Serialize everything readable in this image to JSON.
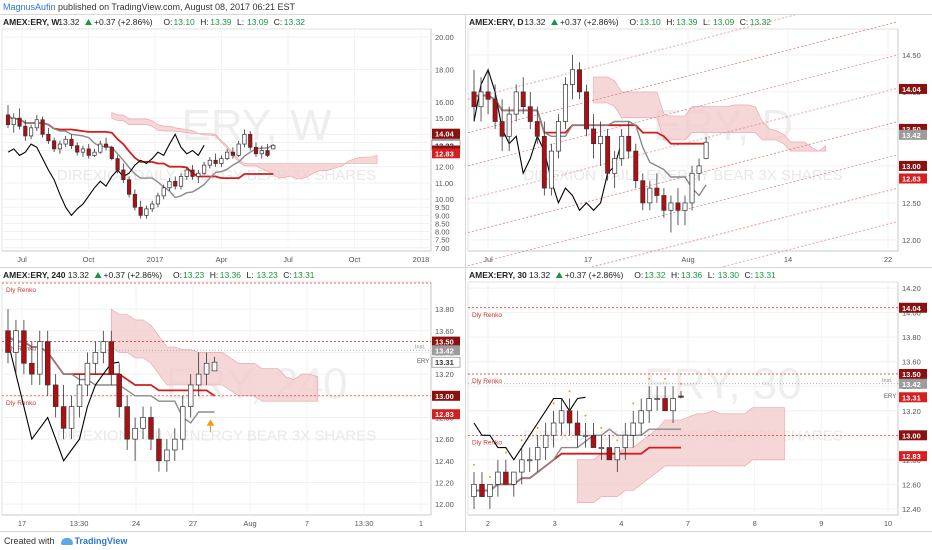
{
  "header": {
    "author": "MagnusAufin",
    "rest": " published on TradingView.com, August 08, 2017 06:21 EST"
  },
  "footer": {
    "prefix": "Created with",
    "brand": "TradingView",
    "icon": "cloud-icon"
  },
  "colors": {
    "up": "#ffffff",
    "down": "#b10d12",
    "cloud": "#f3c9cb",
    "red_line": "#d11e1e",
    "gray_line": "#8a8a8a",
    "black_line": "#000000",
    "orange": "#f29a1a",
    "green": "#1a9641"
  },
  "panels": [
    {
      "id": "weekly",
      "symbol": "AMEX:ERY, W",
      "last": "13.32",
      "change": "+0.37 (+2.86%)",
      "open": "13.10",
      "high": "13.39",
      "low": "13.09",
      "close": "13.32",
      "watermark_big": "ERY, W",
      "watermark_sub": "DIREXION DAILY ENERGY BEAR 3X SHARES",
      "x_labels": [
        "Jul",
        "Oct",
        "2017",
        "Apr",
        "Jul",
        "Oct",
        "2018"
      ],
      "y_labels": [
        "20.00",
        "18.00",
        "16.00",
        "15.00",
        "14.00",
        "13.50",
        "13.00",
        "12.00",
        "11.00",
        "10.00",
        "9.50",
        "9.00",
        "8.50",
        "8.00",
        "7.50",
        "7.00"
      ],
      "price_tags": [
        {
          "value": "14.04",
          "style": "down"
        },
        {
          "value": "13.50",
          "style": "down"
        },
        {
          "value": "13.42",
          "style": "gray"
        },
        {
          "value": "13.32",
          "style": "outline"
        },
        {
          "value": "13.00",
          "style": "down"
        },
        {
          "value": "12.83",
          "style": "red"
        }
      ],
      "annotations": []
    },
    {
      "id": "daily",
      "symbol": "AMEX:ERY, D",
      "last": "13.32",
      "change": "+0.37 (+2.86%)",
      "open": "13.10",
      "high": "13.39",
      "low": "13.09",
      "close": "13.32",
      "watermark_big": "ERY, D",
      "watermark_sub": "DIREXION DAILY ENERGY BEAR 3X SHARES",
      "x_labels": [
        "Jul",
        "17",
        "Aug",
        "14",
        "22"
      ],
      "y_labels": [
        "14.50",
        "14.00",
        "13.50",
        "13.00",
        "12.50",
        "12.00"
      ],
      "price_tags": [
        {
          "value": "14.04",
          "style": "down"
        },
        {
          "value": "13.50",
          "style": "down"
        },
        {
          "value": "13.42",
          "style": "gray"
        },
        {
          "value": "13.00",
          "style": "down"
        },
        {
          "value": "12.83",
          "style": "red"
        }
      ],
      "annotations": []
    },
    {
      "id": "h240",
      "symbol": "AMEX:ERY, 240",
      "last": "13.32",
      "change": "+0.37 (+2.86%)",
      "open": "13.23",
      "high": "13.36",
      "low": "13.23",
      "close": "13.31",
      "watermark_big": "ERY, 240",
      "watermark_sub": "DIREXION DAILY ENERGY BEAR 3X SHARES",
      "x_labels": [
        "17",
        "13:30",
        "24",
        "27",
        "Aug",
        "7",
        "13:30",
        "1"
      ],
      "y_labels": [
        "13.80",
        "13.60",
        "13.40",
        "13.20",
        "13.00",
        "12.80",
        "12.60",
        "12.40",
        "12.20",
        "12.00"
      ],
      "price_tags": [
        {
          "value": "13.50",
          "style": "down"
        },
        {
          "value": "13.42",
          "style": "gray"
        },
        {
          "value": "13.31",
          "style": "outline"
        },
        {
          "value": "13.00",
          "style": "down"
        },
        {
          "value": "12.83",
          "style": "red"
        }
      ],
      "annotations": [
        "Dly Renko",
        "Dly Renko",
        "Dly Renko",
        "ERY",
        "Inst."
      ]
    },
    {
      "id": "m30",
      "symbol": "AMEX:ERY, 30",
      "last": "13.32",
      "change": "+0.37 (+2.86%)",
      "open": "13.32",
      "high": "13.36",
      "low": "13.30",
      "close": "13.31",
      "watermark_big": "ERY, 30",
      "watermark_sub": "DIREXION DAILY ENERGY BEAR 3X SHARES",
      "x_labels": [
        "2",
        "3",
        "4",
        "7",
        "8",
        "9",
        "10"
      ],
      "y_labels": [
        "14.20",
        "14.00",
        "13.80",
        "13.60",
        "13.40",
        "13.20",
        "13.00",
        "12.80",
        "12.60",
        "12.40"
      ],
      "price_tags": [
        {
          "value": "14.04",
          "style": "down"
        },
        {
          "value": "13.50",
          "style": "down"
        },
        {
          "value": "13.42",
          "style": "gray"
        },
        {
          "value": "13.31",
          "style": "red"
        },
        {
          "value": "13.00",
          "style": "down"
        },
        {
          "value": "12.83",
          "style": "red"
        }
      ],
      "annotations": [
        "Dly Renko",
        "Dly Renko",
        "Dly Renko",
        "ERY",
        "Inst."
      ]
    }
  ],
  "chart_data": [
    {
      "type": "candlestick",
      "panel": "weekly",
      "title": "AMEX:ERY, W",
      "x": [
        "Jul",
        "Oct",
        "2017",
        "Apr",
        "Jul",
        "Oct",
        "2018"
      ],
      "ylim": [
        6.8,
        20.5
      ],
      "ohlc": [
        [
          15.2,
          15.8,
          14.4,
          14.6
        ],
        [
          14.6,
          15.3,
          14.1,
          15.0
        ],
        [
          15.0,
          15.6,
          14.3,
          14.5
        ],
        [
          14.5,
          14.9,
          13.6,
          13.9
        ],
        [
          13.9,
          14.6,
          13.7,
          14.4
        ],
        [
          14.4,
          15.2,
          14.2,
          14.9
        ],
        [
          14.9,
          15.1,
          13.8,
          14.0
        ],
        [
          14.0,
          14.4,
          13.4,
          13.6
        ],
        [
          13.6,
          13.8,
          12.9,
          13.1
        ],
        [
          13.1,
          13.6,
          12.8,
          13.4
        ],
        [
          13.4,
          13.9,
          13.2,
          13.7
        ],
        [
          13.7,
          14.0,
          13.1,
          13.3
        ],
        [
          13.3,
          13.5,
          12.7,
          12.9
        ],
        [
          12.9,
          13.3,
          12.6,
          13.1
        ],
        [
          13.1,
          13.4,
          12.5,
          12.7
        ],
        [
          12.7,
          13.1,
          12.6,
          12.9
        ],
        [
          12.9,
          13.6,
          12.8,
          13.4
        ],
        [
          13.4,
          13.8,
          13.0,
          13.2
        ],
        [
          13.2,
          13.3,
          12.4,
          12.5
        ],
        [
          12.5,
          12.7,
          11.6,
          11.8
        ],
        [
          11.8,
          12.2,
          11.0,
          11.2
        ],
        [
          11.2,
          11.4,
          10.1,
          10.3
        ],
        [
          10.3,
          10.6,
          9.3,
          9.5
        ],
        [
          9.5,
          9.9,
          8.8,
          9.0
        ],
        [
          9.0,
          9.6,
          8.8,
          9.4
        ],
        [
          9.4,
          9.9,
          9.2,
          9.7
        ],
        [
          9.7,
          10.4,
          9.5,
          10.2
        ],
        [
          10.2,
          10.9,
          10.0,
          10.7
        ],
        [
          10.7,
          11.3,
          10.5,
          11.1
        ],
        [
          11.1,
          11.4,
          10.6,
          10.8
        ],
        [
          10.8,
          11.6,
          10.6,
          11.4
        ],
        [
          11.4,
          12.0,
          11.2,
          11.8
        ],
        [
          11.8,
          12.1,
          11.2,
          11.4
        ],
        [
          11.4,
          11.8,
          11.0,
          11.6
        ],
        [
          11.6,
          12.3,
          11.5,
          12.1
        ],
        [
          12.1,
          12.6,
          11.9,
          12.4
        ],
        [
          12.4,
          12.8,
          12.0,
          12.2
        ],
        [
          12.2,
          12.7,
          12.0,
          12.5
        ],
        [
          12.5,
          13.1,
          12.4,
          12.9
        ],
        [
          12.9,
          13.2,
          12.5,
          12.7
        ],
        [
          12.7,
          13.6,
          12.6,
          13.4
        ],
        [
          13.4,
          14.3,
          13.2,
          14.0
        ],
        [
          14.0,
          14.2,
          13.0,
          13.2
        ],
        [
          13.2,
          13.5,
          12.6,
          12.8
        ],
        [
          12.8,
          13.3,
          12.5,
          13.0
        ],
        [
          13.0,
          13.4,
          12.6,
          12.7
        ],
        [
          13.1,
          13.39,
          13.09,
          13.32
        ]
      ],
      "series": [
        {
          "name": "Tenkan",
          "color": "gray"
        },
        {
          "name": "Kijun",
          "color": "red"
        },
        {
          "name": "Chikou",
          "color": "black"
        },
        {
          "name": "Kumo",
          "color": "cloud"
        }
      ]
    },
    {
      "type": "candlestick",
      "panel": "daily",
      "title": "AMEX:ERY, D",
      "x": [
        "Jul",
        "17",
        "Aug",
        "14",
        "22"
      ],
      "ylim": [
        11.85,
        14.85
      ],
      "ohlc": [
        [
          14.0,
          14.3,
          13.6,
          13.8
        ],
        [
          13.8,
          14.2,
          13.6,
          14.0
        ],
        [
          14.0,
          14.3,
          13.7,
          13.9
        ],
        [
          13.9,
          14.1,
          13.5,
          13.6
        ],
        [
          13.6,
          13.9,
          13.2,
          13.4
        ],
        [
          13.4,
          13.8,
          13.2,
          13.7
        ],
        [
          13.7,
          14.1,
          13.6,
          14.0
        ],
        [
          14.0,
          14.2,
          13.7,
          13.8
        ],
        [
          13.8,
          14.0,
          13.5,
          13.6
        ],
        [
          13.6,
          13.8,
          13.3,
          13.4
        ],
        [
          13.4,
          13.6,
          12.6,
          12.7
        ],
        [
          12.7,
          13.3,
          12.6,
          13.2
        ],
        [
          13.2,
          13.7,
          13.1,
          13.6
        ],
        [
          13.6,
          14.2,
          13.5,
          14.1
        ],
        [
          14.1,
          14.5,
          13.9,
          14.3
        ],
        [
          14.3,
          14.4,
          13.9,
          14.0
        ],
        [
          14.0,
          14.1,
          13.4,
          13.5
        ],
        [
          13.5,
          13.7,
          13.1,
          13.3
        ],
        [
          13.3,
          13.6,
          13.0,
          13.4
        ],
        [
          13.4,
          13.5,
          12.8,
          12.9
        ],
        [
          12.9,
          13.2,
          12.7,
          13.1
        ],
        [
          13.1,
          13.5,
          13.0,
          13.4
        ],
        [
          13.4,
          13.6,
          13.1,
          13.2
        ],
        [
          13.2,
          13.3,
          12.7,
          12.8
        ],
        [
          12.8,
          12.9,
          12.4,
          12.5
        ],
        [
          12.5,
          12.8,
          12.4,
          12.7
        ],
        [
          12.7,
          12.9,
          12.5,
          12.6
        ],
        [
          12.6,
          12.7,
          12.3,
          12.4
        ],
        [
          12.4,
          12.6,
          12.1,
          12.5
        ],
        [
          12.5,
          12.7,
          12.2,
          12.4
        ],
        [
          12.4,
          12.6,
          12.2,
          12.5
        ],
        [
          12.5,
          13.0,
          12.4,
          12.9
        ],
        [
          12.9,
          13.1,
          12.8,
          13.0
        ],
        [
          13.1,
          13.39,
          13.09,
          13.32
        ]
      ],
      "series": [
        {
          "name": "Tenkan",
          "color": "gray"
        },
        {
          "name": "Kijun",
          "color": "red"
        },
        {
          "name": "Chikou",
          "color": "black"
        },
        {
          "name": "Kumo",
          "color": "cloud"
        },
        {
          "name": "Channel",
          "color": "red-dotted"
        }
      ]
    },
    {
      "type": "candlestick",
      "panel": "h240",
      "title": "AMEX:ERY, 240",
      "x": [
        "17",
        "13:30",
        "24",
        "27",
        "Aug",
        "7",
        "13:30",
        "1"
      ],
      "ylim": [
        11.9,
        14.05
      ],
      "ohlc": [
        [
          13.6,
          13.8,
          13.3,
          13.4
        ],
        [
          13.4,
          13.7,
          13.2,
          13.6
        ],
        [
          13.6,
          13.7,
          13.2,
          13.3
        ],
        [
          13.3,
          13.5,
          13.1,
          13.2
        ],
        [
          13.2,
          13.6,
          13.1,
          13.5
        ],
        [
          13.5,
          13.6,
          13.0,
          13.1
        ],
        [
          13.1,
          13.2,
          12.8,
          12.9
        ],
        [
          12.9,
          13.1,
          12.6,
          12.7
        ],
        [
          12.7,
          13.0,
          12.6,
          12.9
        ],
        [
          12.9,
          13.2,
          12.8,
          13.1
        ],
        [
          13.1,
          13.4,
          13.0,
          13.3
        ],
        [
          13.3,
          13.5,
          13.2,
          13.4
        ],
        [
          13.4,
          13.6,
          13.3,
          13.5
        ],
        [
          13.5,
          13.6,
          13.1,
          13.2
        ],
        [
          13.2,
          13.3,
          12.8,
          12.9
        ],
        [
          12.9,
          13.0,
          12.5,
          12.6
        ],
        [
          12.6,
          12.8,
          12.4,
          12.7
        ],
        [
          12.7,
          12.9,
          12.6,
          12.8
        ],
        [
          12.8,
          12.9,
          12.5,
          12.6
        ],
        [
          12.6,
          12.7,
          12.3,
          12.4
        ],
        [
          12.4,
          12.6,
          12.3,
          12.5
        ],
        [
          12.5,
          12.7,
          12.4,
          12.6
        ],
        [
          12.6,
          13.0,
          12.5,
          12.9
        ],
        [
          12.9,
          13.2,
          12.8,
          13.1
        ],
        [
          13.1,
          13.4,
          13.0,
          13.2
        ],
        [
          13.2,
          13.4,
          13.1,
          13.3
        ],
        [
          13.23,
          13.36,
          13.23,
          13.31
        ]
      ],
      "series": [
        {
          "name": "Tenkan",
          "color": "gray"
        },
        {
          "name": "Kijun",
          "color": "red"
        },
        {
          "name": "Chikou",
          "color": "black"
        },
        {
          "name": "Kumo",
          "color": "cloud"
        },
        {
          "name": "Dly Renko",
          "color": "red-dotted"
        }
      ]
    },
    {
      "type": "candlestick",
      "panel": "m30",
      "title": "AMEX:ERY, 30",
      "x": [
        "2",
        "3",
        "4",
        "7",
        "8",
        "9",
        "10"
      ],
      "ylim": [
        12.35,
        14.25
      ],
      "ohlc": [
        [
          12.5,
          12.7,
          12.4,
          12.6
        ],
        [
          12.6,
          12.7,
          12.5,
          12.5
        ],
        [
          12.5,
          12.6,
          12.4,
          12.6
        ],
        [
          12.6,
          12.8,
          12.5,
          12.7
        ],
        [
          12.7,
          12.8,
          12.6,
          12.6
        ],
        [
          12.6,
          12.7,
          12.5,
          12.7
        ],
        [
          12.7,
          12.9,
          12.6,
          12.8
        ],
        [
          12.8,
          12.9,
          12.7,
          12.8
        ],
        [
          12.8,
          13.0,
          12.7,
          12.9
        ],
        [
          12.9,
          13.1,
          12.8,
          13.0
        ],
        [
          13.0,
          13.2,
          12.9,
          13.1
        ],
        [
          13.1,
          13.3,
          13.0,
          13.2
        ],
        [
          13.2,
          13.3,
          13.0,
          13.1
        ],
        [
          13.1,
          13.2,
          12.9,
          13.0
        ],
        [
          13.0,
          13.1,
          12.9,
          13.0
        ],
        [
          13.0,
          13.1,
          12.9,
          12.9
        ],
        [
          12.9,
          13.0,
          12.8,
          12.9
        ],
        [
          12.9,
          13.0,
          12.8,
          12.8
        ],
        [
          12.8,
          12.9,
          12.7,
          12.9
        ],
        [
          12.9,
          13.1,
          12.8,
          13.0
        ],
        [
          13.0,
          13.2,
          12.9,
          13.1
        ],
        [
          13.1,
          13.3,
          13.0,
          13.2
        ],
        [
          13.2,
          13.4,
          13.1,
          13.3
        ],
        [
          13.3,
          13.4,
          13.2,
          13.3
        ],
        [
          13.3,
          13.4,
          13.2,
          13.2
        ],
        [
          13.2,
          13.4,
          13.1,
          13.3
        ],
        [
          13.32,
          13.36,
          13.3,
          13.31
        ]
      ],
      "series": [
        {
          "name": "Tenkan",
          "color": "gray"
        },
        {
          "name": "Kijun",
          "color": "red"
        },
        {
          "name": "Chikou",
          "color": "black"
        },
        {
          "name": "Kumo",
          "color": "cloud"
        },
        {
          "name": "Dly Renko",
          "color": "red-dotted"
        }
      ]
    }
  ]
}
